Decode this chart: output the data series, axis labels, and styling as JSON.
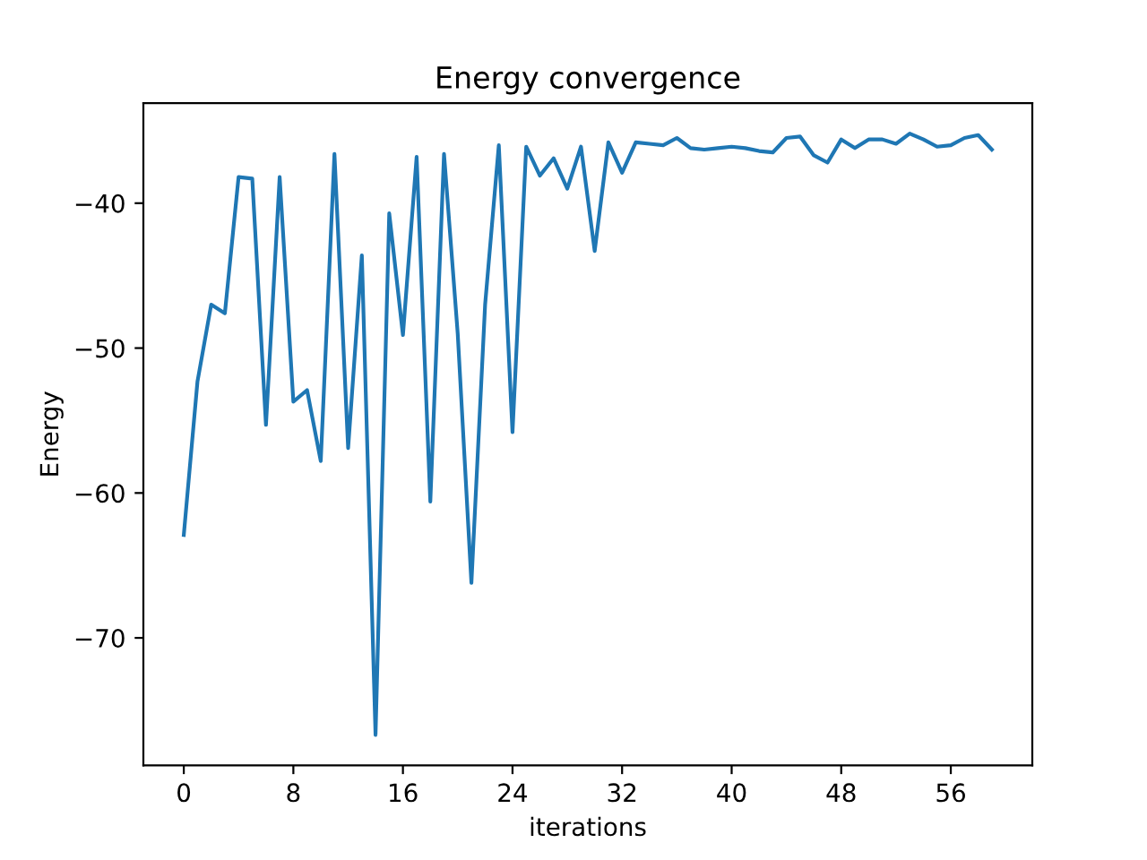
{
  "chart_data": {
    "type": "line",
    "title": "Energy convergence",
    "xlabel": "iterations",
    "ylabel": "Energy",
    "x": [
      0,
      1,
      2,
      3,
      4,
      5,
      6,
      7,
      8,
      9,
      10,
      11,
      12,
      13,
      14,
      15,
      16,
      17,
      18,
      19,
      20,
      21,
      22,
      23,
      24,
      25,
      26,
      27,
      28,
      29,
      30,
      31,
      32,
      33,
      34,
      35,
      36,
      37,
      38,
      39,
      40,
      41,
      42,
      43,
      44,
      45,
      46,
      47,
      48,
      49,
      50,
      51,
      52,
      53,
      54,
      55,
      56,
      57,
      58,
      59
    ],
    "series": [
      {
        "color": "#1f77b4",
        "values": [
          -62.9,
          -52.3,
          -47.0,
          -47.6,
          -38.2,
          -38.3,
          -55.3,
          -38.2,
          -53.7,
          -52.9,
          -57.8,
          -36.6,
          -56.9,
          -43.6,
          -76.7,
          -40.7,
          -49.1,
          -36.8,
          -60.6,
          -36.6,
          -49.0,
          -66.2,
          -47.0,
          -36.0,
          -55.8,
          -36.1,
          -38.1,
          -36.9,
          -39.0,
          -36.1,
          -43.3,
          -35.8,
          -37.9,
          -35.8,
          -35.9,
          -36.0,
          -35.5,
          -36.2,
          -36.3,
          -36.2,
          -36.1,
          -36.2,
          -36.4,
          -36.5,
          -35.5,
          -35.4,
          -36.7,
          -37.2,
          -35.6,
          -36.2,
          -35.6,
          -35.6,
          -35.9,
          -35.2,
          -35.6,
          -36.1,
          -36.0,
          -35.5,
          -35.3,
          -36.3
        ]
      }
    ],
    "xlim": [
      -2.95,
      61.95
    ],
    "xticks": [
      0,
      8,
      16,
      24,
      32,
      40,
      48,
      56
    ],
    "ylim": [
      -78.8,
      -33.1
    ],
    "yticks": [
      {
        "value": -70,
        "label": "−70"
      },
      {
        "value": -60,
        "label": "−60"
      },
      {
        "value": -50,
        "label": "−50"
      },
      {
        "value": -40,
        "label": "−40"
      }
    ],
    "grid": false,
    "legend": false
  }
}
